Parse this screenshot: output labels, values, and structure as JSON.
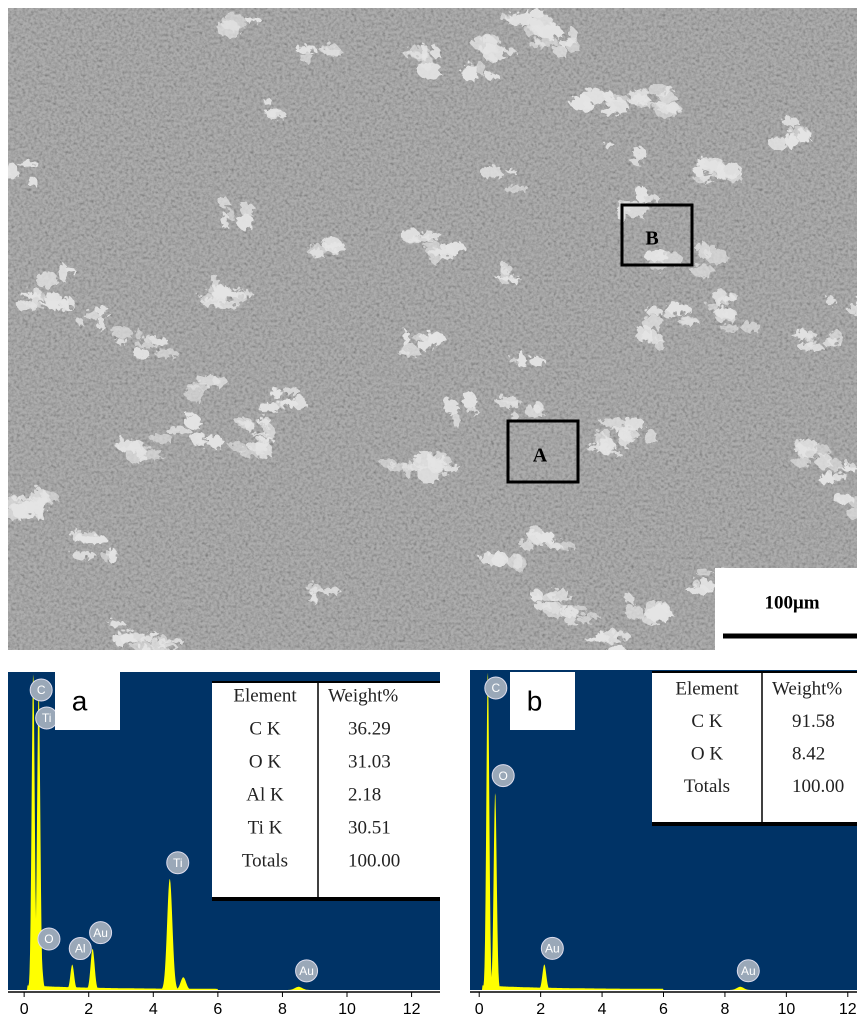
{
  "image": {
    "markers": [
      "A",
      "B"
    ],
    "scale_bar": "100μm"
  },
  "chart_data": [
    {
      "type": "spectrum",
      "label": "a",
      "xlim": [
        -0.5,
        12.88
      ],
      "xticks": [
        0,
        2,
        4,
        6,
        8,
        10,
        12
      ],
      "ylim": [
        0,
        100
      ],
      "x": [
        0.28,
        0.45,
        0.52,
        1.49,
        2.12,
        4.51,
        4.93,
        8.5
      ],
      "values": [
        100,
        95,
        11,
        8,
        13,
        35,
        4,
        1
      ],
      "peak_labels": [
        "C",
        "Ti",
        "O",
        "Al",
        "Au",
        "Ti",
        null,
        "Au"
      ],
      "color": "#ffff00",
      "background": "#003366",
      "table": {
        "header": [
          "Element",
          "Weight%"
        ],
        "rows": [
          [
            "C K",
            "36.29"
          ],
          [
            "O K",
            "31.03"
          ],
          [
            "Al K",
            "2.18"
          ],
          [
            "Ti K",
            "30.51"
          ],
          [
            "Totals",
            "100.00"
          ]
        ]
      }
    },
    {
      "type": "spectrum",
      "label": "b",
      "xlim": [
        -0.3,
        12.3
      ],
      "xticks": [
        0,
        2,
        4,
        6,
        8,
        10,
        12
      ],
      "ylim": [
        0,
        100
      ],
      "x": [
        0.28,
        0.52,
        2.12,
        8.5
      ],
      "values": [
        100,
        62,
        8,
        1
      ],
      "peak_labels": [
        "C",
        "O",
        "Au",
        "Au"
      ],
      "color": "#ffff00",
      "background": "#003366",
      "table": {
        "header": [
          "Element",
          "Weight%"
        ],
        "rows": [
          [
            "C K",
            "91.58"
          ],
          [
            "O K",
            "8.42"
          ],
          [
            "Totals",
            "100.00"
          ]
        ]
      }
    }
  ]
}
